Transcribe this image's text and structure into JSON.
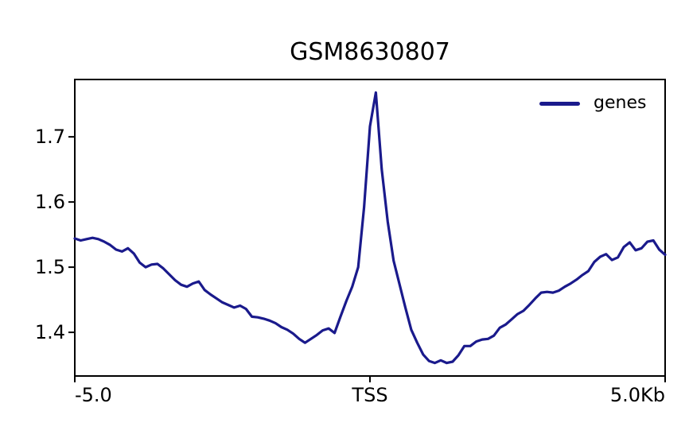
{
  "chart_data": {
    "type": "line",
    "title": "GSM8630807",
    "xlabel": "",
    "ylabel": "",
    "x_unit": "Kb",
    "reference_point": "TSS",
    "xlim": [
      -5.0,
      5.0
    ],
    "ylim": [
      1.333,
      1.788
    ],
    "grid": false,
    "legend_position": "upper right",
    "axis_color": "#000000",
    "background_color": "#ffffff",
    "xticks": [
      {
        "value": -5.0,
        "label": "-5.0",
        "align": "left"
      },
      {
        "value": 0.0,
        "label": "TSS",
        "align": "center"
      },
      {
        "value": 5.0,
        "label": "5.0Kb",
        "align": "right"
      }
    ],
    "yticks": [
      {
        "value": 1.4,
        "label": "1.4"
      },
      {
        "value": 1.5,
        "label": "1.5"
      },
      {
        "value": 1.6,
        "label": "1.6"
      },
      {
        "value": 1.7,
        "label": "1.7"
      }
    ],
    "x": [
      -5.0,
      -4.9,
      -4.8,
      -4.7,
      -4.6,
      -4.5,
      -4.4,
      -4.3,
      -4.2,
      -4.1,
      -4.0,
      -3.9,
      -3.8,
      -3.7,
      -3.6,
      -3.5,
      -3.4,
      -3.3,
      -3.2,
      -3.1,
      -3.0,
      -2.9,
      -2.8,
      -2.7,
      -2.6,
      -2.5,
      -2.4,
      -2.3,
      -2.2,
      -2.1,
      -2.0,
      -1.9,
      -1.8,
      -1.7,
      -1.6,
      -1.5,
      -1.4,
      -1.3,
      -1.2,
      -1.1,
      -1.0,
      -0.9,
      -0.8,
      -0.7,
      -0.6,
      -0.5,
      -0.4,
      -0.3,
      -0.2,
      -0.1,
      0.0,
      0.1,
      0.2,
      0.3,
      0.4,
      0.5,
      0.6,
      0.7,
      0.8,
      0.9,
      1.0,
      1.1,
      1.2,
      1.3,
      1.4,
      1.5,
      1.6,
      1.7,
      1.8,
      1.9,
      2.0,
      2.1,
      2.2,
      2.3,
      2.4,
      2.5,
      2.6,
      2.7,
      2.8,
      2.9,
      3.0,
      3.1,
      3.2,
      3.3,
      3.4,
      3.5,
      3.6,
      3.7,
      3.8,
      3.9,
      4.0,
      4.1,
      4.2,
      4.3,
      4.4,
      4.5,
      4.6,
      4.7,
      4.8,
      4.9,
      5.0
    ],
    "series": [
      {
        "name": "genes",
        "color": "#1a1a8c",
        "values": [
          1.544,
          1.541,
          1.543,
          1.545,
          1.543,
          1.539,
          1.534,
          1.527,
          1.524,
          1.529,
          1.521,
          1.507,
          1.5,
          1.504,
          1.505,
          1.498,
          1.489,
          1.48,
          1.473,
          1.47,
          1.475,
          1.478,
          1.465,
          1.458,
          1.452,
          1.446,
          1.442,
          1.438,
          1.441,
          1.436,
          1.424,
          1.423,
          1.421,
          1.418,
          1.414,
          1.408,
          1.404,
          1.398,
          1.39,
          1.384,
          1.39,
          1.396,
          1.403,
          1.406,
          1.399,
          1.424,
          1.448,
          1.47,
          1.5,
          1.592,
          1.716,
          1.768,
          1.65,
          1.57,
          1.51,
          1.474,
          1.438,
          1.404,
          1.384,
          1.366,
          1.356,
          1.353,
          1.357,
          1.353,
          1.355,
          1.365,
          1.379,
          1.379,
          1.386,
          1.389,
          1.39,
          1.395,
          1.407,
          1.412,
          1.42,
          1.428,
          1.433,
          1.442,
          1.452,
          1.461,
          1.462,
          1.461,
          1.464,
          1.47,
          1.475,
          1.481,
          1.488,
          1.494,
          1.508,
          1.516,
          1.52,
          1.511,
          1.515,
          1.531,
          1.538,
          1.526,
          1.529,
          1.539,
          1.541,
          1.527,
          1.519
        ]
      }
    ]
  }
}
